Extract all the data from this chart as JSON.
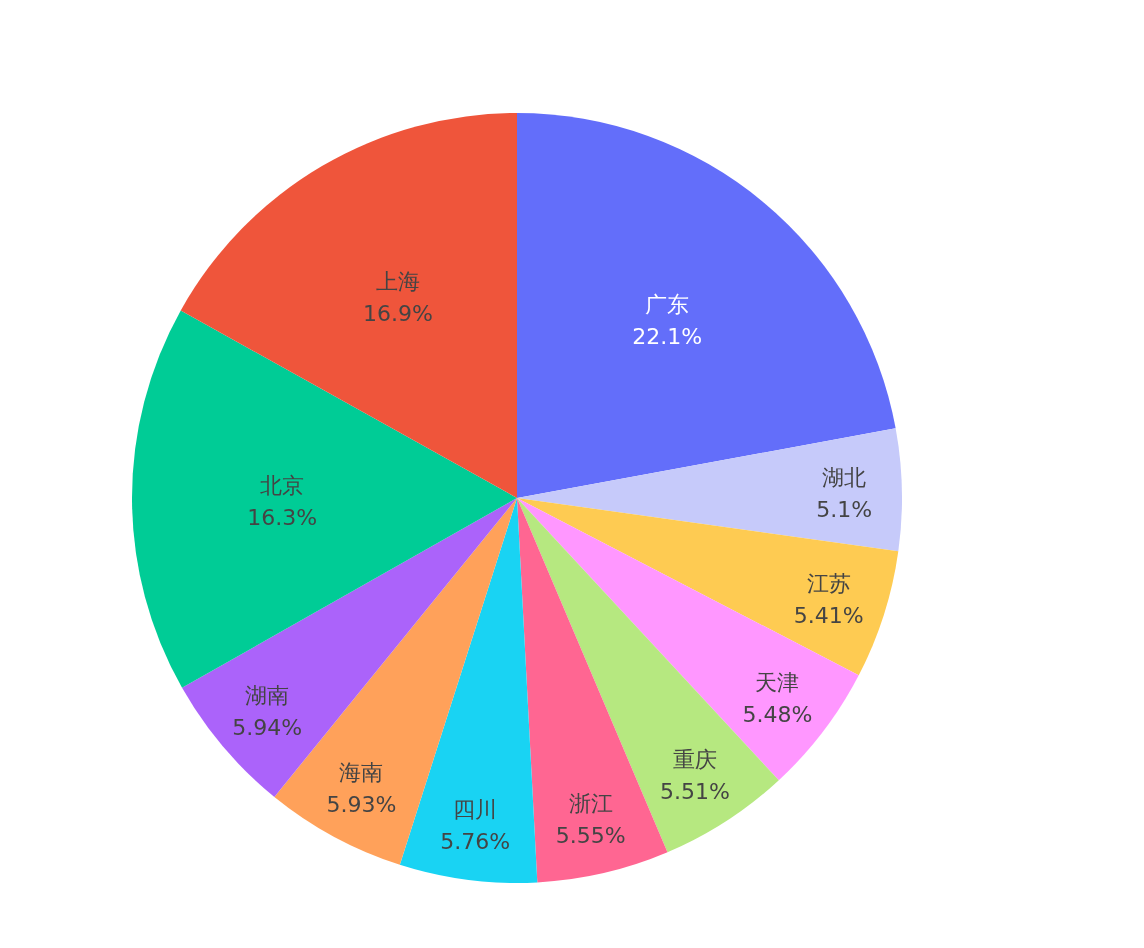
{
  "chart_data": {
    "type": "pie",
    "categories": [
      "广东",
      "湖北",
      "江苏",
      "天津",
      "重庆",
      "浙江",
      "四川",
      "海南",
      "湖南",
      "北京",
      "上海"
    ],
    "values": [
      22.1,
      5.1,
      5.41,
      5.48,
      5.51,
      5.55,
      5.76,
      5.93,
      5.94,
      16.3,
      16.9
    ],
    "value_labels": [
      "22.1%",
      "5.1%",
      "5.41%",
      "5.48%",
      "5.51%",
      "5.55%",
      "5.76%",
      "5.93%",
      "5.94%",
      "16.3%",
      "16.9%"
    ],
    "colors": [
      "#636efa",
      "#c6cafa",
      "#fecb52",
      "#ff97ff",
      "#b6e880",
      "#ff6692",
      "#19d3f3",
      "#ffa15a",
      "#ab63fa",
      "#00cc96",
      "#ef553b"
    ]
  }
}
